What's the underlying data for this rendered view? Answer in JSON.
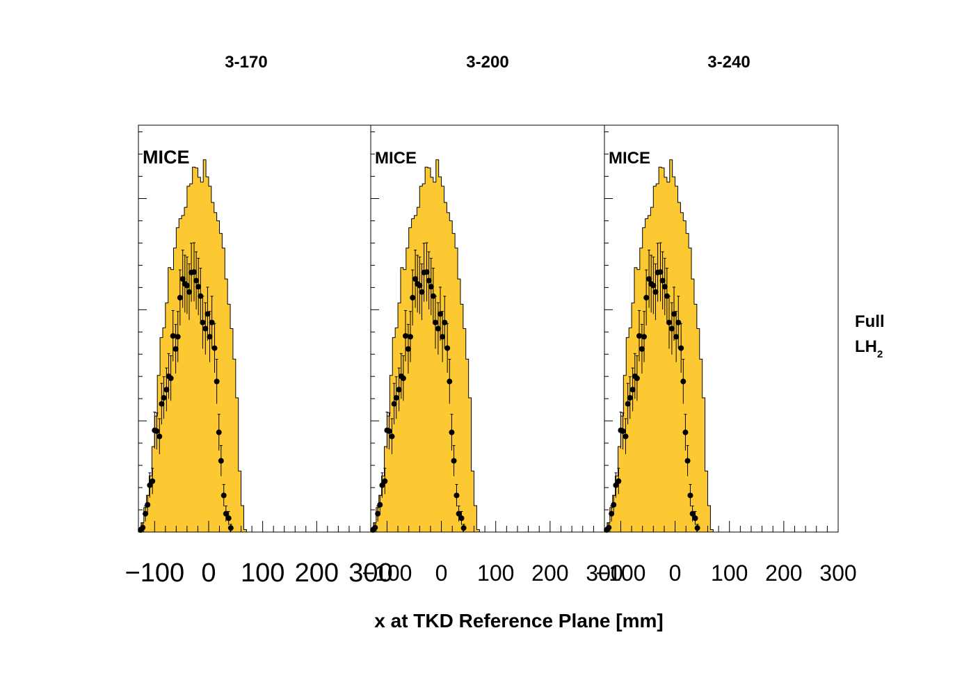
{
  "figure": {
    "xlabel": "x at TKD Reference Plane [mm]",
    "side_label_line1": "Full",
    "side_label_line2_main": "LH",
    "side_label_line2_sub": "2",
    "colors": {
      "mc_fill": "#fdc932",
      "mc_line": "#000000",
      "data_marker": "#000000"
    }
  },
  "chart_data": [
    {
      "type": "bar",
      "title": "3-170",
      "watermark": "MICE",
      "xlim": [
        -130,
        300
      ],
      "xticks": [
        -100,
        0,
        100,
        200,
        300
      ],
      "xtick_labels": [
        "−100",
        "0",
        "100",
        "200",
        "300"
      ],
      "bin_width": 5,
      "bin_start": -130,
      "series": [
        {
          "name": "",
          "kind": "histogram",
          "values": [
            0.4,
            2.3,
            6.0,
            9.0,
            13.8,
            21.0,
            28.5,
            38.5,
            47.8,
            50.2,
            56.3,
            65.0,
            64.5,
            69.8,
            74.8,
            77.0,
            77.8,
            79.8,
            85.0,
            85.6,
            89.7,
            89.5,
            87.2,
            86.0,
            91.5,
            87.3,
            85.0,
            81.0,
            78.5,
            76.5,
            73.4,
            69.8,
            62.2,
            56.0,
            50.0,
            42.5,
            33.0,
            15.0,
            6.5,
            0.6,
            0,
            0,
            0,
            0,
            0,
            0,
            0,
            0,
            0,
            0,
            0,
            0,
            0,
            0,
            0,
            0,
            0,
            0,
            0,
            0,
            0,
            0,
            0,
            0,
            0,
            0,
            0,
            0,
            0,
            0,
            0,
            0,
            0,
            0,
            0,
            0,
            0,
            0,
            0,
            0,
            0,
            0,
            0,
            0,
            0,
            0
          ]
        },
        {
          "name": "",
          "kind": "points",
          "x": [
            -126,
            -122,
            -117,
            -113,
            -109,
            -104,
            -100,
            -96,
            -91,
            -87,
            -83,
            -78,
            -74,
            -70,
            -66,
            -61,
            -57,
            -53,
            -48,
            -44,
            -40,
            -36,
            -32,
            -27,
            -23,
            -19,
            -15,
            -11,
            -6,
            -2,
            2,
            6,
            11,
            15,
            19,
            23,
            28,
            32,
            37,
            41
          ],
          "y": [
            0.5,
            1.1,
            4.5,
            6.7,
            11.5,
            12.5,
            25.0,
            24.8,
            23.5,
            31.5,
            33.0,
            35.0,
            38.3,
            37.8,
            48.2,
            45.0,
            48.0,
            57.6,
            62.2,
            61.0,
            60.6,
            59.0,
            63.8,
            63.9,
            61.8,
            60.3,
            58.0,
            51.5,
            50.0,
            53.6,
            48.0,
            51.5,
            45.2,
            37.0,
            24.5,
            17.5,
            9.0,
            4.5,
            3.4,
            1.0
          ]
        }
      ]
    },
    {
      "type": "bar",
      "title": "3-200",
      "watermark": "MICE",
      "xlim": [
        -130,
        300
      ],
      "xticks": [
        -100,
        0,
        100,
        200,
        300
      ],
      "xtick_labels": [
        "−100",
        "0",
        "100",
        "200",
        "300"
      ]
    },
    {
      "type": "bar",
      "title": "3-240",
      "watermark": "MICE",
      "xlim": [
        -130,
        300
      ],
      "xticks": [
        -100,
        0,
        100,
        200,
        300
      ],
      "xtick_labels": [
        "−100",
        "0",
        "100",
        "200",
        "300"
      ]
    }
  ]
}
